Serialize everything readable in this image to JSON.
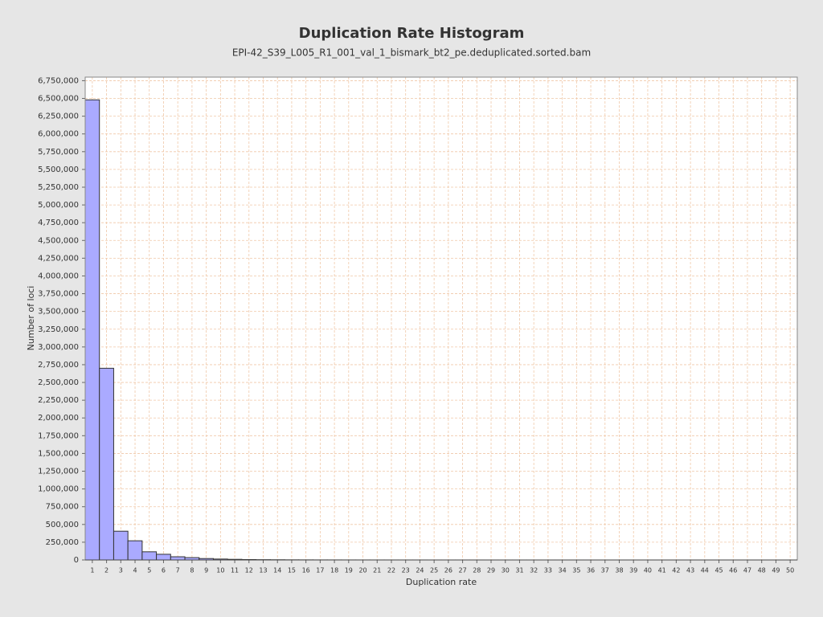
{
  "chart_data": {
    "type": "bar",
    "title": "Duplication Rate Histogram",
    "subtitle": "EPI-42_S39_L005_R1_001_val_1_bismark_bt2_pe.deduplicated.sorted.bam",
    "x_label": "Duplication rate",
    "y_label": "Number of loci",
    "categories": [
      1,
      2,
      3,
      4,
      5,
      6,
      7,
      8,
      9,
      10,
      11,
      12,
      13,
      14,
      15,
      16,
      17,
      18,
      19,
      20,
      21,
      22,
      23,
      24,
      25,
      26,
      27,
      28,
      29,
      30,
      31,
      32,
      33,
      34,
      35,
      36,
      37,
      38,
      39,
      40,
      41,
      42,
      43,
      44,
      45,
      46,
      47,
      48,
      49,
      50
    ],
    "values": [
      6480000,
      2700000,
      405000,
      270000,
      115000,
      80000,
      45000,
      33000,
      20000,
      13000,
      9000,
      6000,
      4000,
      3000,
      2000,
      1500,
      1000,
      800,
      600,
      500,
      400,
      350,
      300,
      250,
      200,
      180,
      160,
      140,
      120,
      100,
      90,
      80,
      70,
      60,
      50,
      45,
      40,
      35,
      30,
      25,
      20,
      18,
      16,
      14,
      12,
      10,
      8,
      6,
      4,
      2
    ],
    "color": "#aaaaff",
    "ylim": [
      0,
      6800000
    ],
    "yticks": [
      0,
      {
        "value": 250000,
        "label": "250,000"
      },
      {
        "value": 500000,
        "label": "500,000"
      },
      {
        "value": 750000,
        "label": "750,000"
      },
      {
        "value": 1000000,
        "label": "1,000,000"
      },
      {
        "value": 1250000,
        "label": "1,250,000"
      },
      {
        "value": 1500000,
        "label": "1,500,000"
      },
      {
        "value": 1750000,
        "label": "1,750,000"
      },
      {
        "value": 2000000,
        "label": "2,000,000"
      },
      {
        "value": 2250000,
        "label": "2,250,000"
      },
      {
        "value": 2500000,
        "label": "2,500,000"
      },
      {
        "value": 2750000,
        "label": "2,750,000"
      },
      {
        "value": 3000000,
        "label": "3,000,000"
      },
      {
        "value": 3250000,
        "label": "3,250,000"
      },
      {
        "value": 3500000,
        "label": "3,500,000"
      },
      {
        "value": 3750000,
        "label": "3,750,000"
      },
      {
        "value": 4000000,
        "label": "4,000,000"
      },
      {
        "value": 4250000,
        "label": "4,250,000"
      },
      {
        "value": 4500000,
        "label": "4,500,000"
      },
      {
        "value": 4750000,
        "label": "4,750,000"
      },
      {
        "value": 5000000,
        "label": "5,000,000"
      },
      {
        "value": 5250000,
        "label": "5,250,000"
      },
      {
        "value": 5500000,
        "label": "5,500,000"
      },
      {
        "value": 5750000,
        "label": "5,750,000"
      },
      {
        "value": 6000000,
        "label": "6,000,000"
      },
      {
        "value": 6250000,
        "label": "6,250,000"
      },
      {
        "value": 6500000,
        "label": "6,500,000"
      },
      {
        "value": 6750000,
        "label": "6,750,000"
      }
    ],
    "grid": true
  }
}
